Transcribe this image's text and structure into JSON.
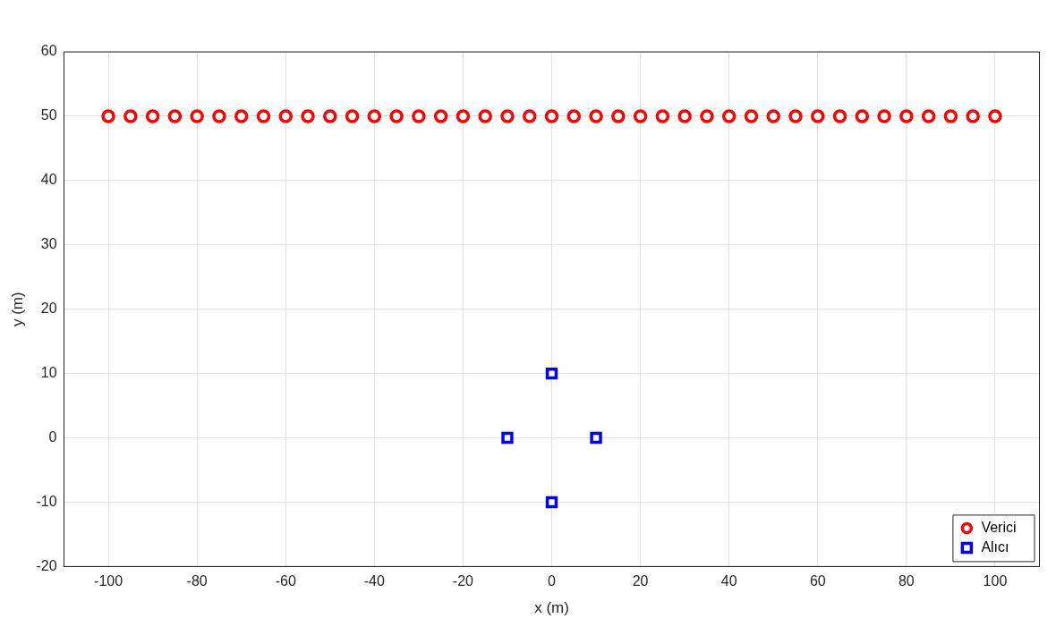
{
  "chart_data": {
    "type": "scatter",
    "xlabel": "x (m)",
    "ylabel": "y (m)",
    "xlim": [
      -110,
      110
    ],
    "ylim": [
      -20,
      60
    ],
    "xticks": [
      -100,
      -80,
      -60,
      -40,
      -20,
      0,
      20,
      40,
      60,
      80,
      100
    ],
    "yticks": [
      -20,
      -10,
      0,
      10,
      20,
      30,
      40,
      50,
      60
    ],
    "grid": true,
    "legend": "bottom right",
    "series": [
      {
        "name": "Verici",
        "color": "#ff0000",
        "marker": "circle",
        "x": [
          -100,
          -95,
          -90,
          -85,
          -80,
          -75,
          -70,
          -65,
          -60,
          -55,
          -50,
          -45,
          -40,
          -35,
          -30,
          -25,
          -20,
          -15,
          -10,
          -5,
          0,
          5,
          10,
          15,
          20,
          25,
          30,
          35,
          40,
          45,
          50,
          55,
          60,
          65,
          70,
          75,
          80,
          85,
          90,
          95,
          100
        ],
        "values": [
          50,
          50,
          50,
          50,
          50,
          50,
          50,
          50,
          50,
          50,
          50,
          50,
          50,
          50,
          50,
          50,
          50,
          50,
          50,
          50,
          50,
          50,
          50,
          50,
          50,
          50,
          50,
          50,
          50,
          50,
          50,
          50,
          50,
          50,
          50,
          50,
          50,
          50,
          50,
          50,
          50
        ]
      },
      {
        "name": "Alıcı",
        "color": "#0000ff",
        "marker": "square",
        "x": [
          0,
          -10,
          10,
          0
        ],
        "values": [
          10,
          0,
          0,
          -10
        ]
      }
    ]
  }
}
